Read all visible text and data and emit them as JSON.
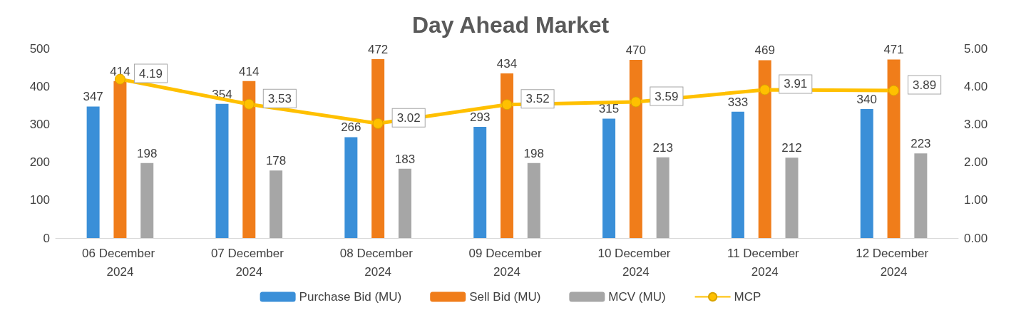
{
  "chart_data": {
    "type": "bar",
    "title": "Day Ahead Market",
    "categories": [
      "06 December 2024",
      "07 December 2024",
      "08 December 2024",
      "09 December 2024",
      "10 December 2024",
      "11 December 2024",
      "12 December 2024"
    ],
    "series": [
      {
        "name": "Purchase Bid (MU)",
        "color": "#3a8fd8",
        "values": [
          347,
          354,
          266,
          293,
          315,
          333,
          340
        ]
      },
      {
        "name": "Sell Bid (MU)",
        "color": "#f07d1a",
        "values": [
          414,
          414,
          472,
          434,
          470,
          469,
          471
        ]
      },
      {
        "name": "MCV (MU)",
        "color": "#a6a6a6",
        "values": [
          198,
          178,
          183,
          198,
          213,
          212,
          223
        ]
      },
      {
        "name": "MCP",
        "type": "line",
        "axis": "y2",
        "color": "#ffc000",
        "values": [
          4.19,
          3.53,
          3.02,
          3.52,
          3.59,
          3.91,
          3.89
        ]
      }
    ],
    "ylim": [
      0,
      500
    ],
    "yticks": [
      0,
      100,
      200,
      300,
      400,
      500
    ],
    "y2lim": [
      0,
      5
    ],
    "y2ticks": [
      {
        "value": 0,
        "label": "0.00"
      },
      {
        "value": 1,
        "label": "1.00"
      },
      {
        "value": 2,
        "label": "2.00"
      },
      {
        "value": 3,
        "label": "3.00"
      },
      {
        "value": 4,
        "label": "4.00"
      },
      {
        "value": 5,
        "label": "5.00"
      }
    ],
    "data_labels": true,
    "grid": false,
    "legend": "bottom",
    "marker": "circle",
    "line_style": "solid"
  }
}
